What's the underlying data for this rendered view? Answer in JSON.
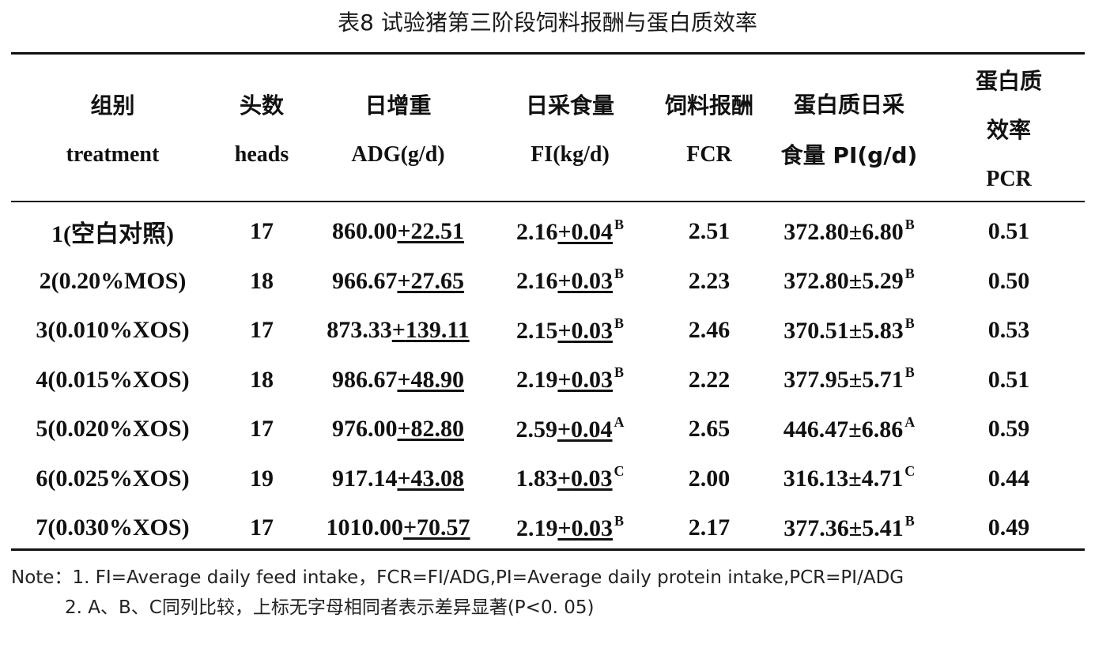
{
  "title": "表8 试验猪第三阶段饲料报酬与蛋白质效率",
  "table": {
    "columns": [
      {
        "zh": "组别",
        "en": "treatment"
      },
      {
        "zh": "头数",
        "en": "heads"
      },
      {
        "zh": "日增重",
        "en": "ADG(g/d)"
      },
      {
        "zh": "日采食量",
        "en": "FI(kg/d)"
      },
      {
        "zh": "饲料报酬",
        "en": "FCR"
      },
      {
        "zh": "蛋白质日采",
        "zh2": "食量 PI(g/d)"
      },
      {
        "zh": "蛋白质",
        "zh2": "效率",
        "en": "PCR"
      }
    ],
    "rows": [
      {
        "treatment": "1(空白对照)",
        "heads": "17",
        "adg_mean": "860.00",
        "adg_sd": "22.51",
        "fi_mean": "2.16",
        "fi_sd": "0.04",
        "fi_sig": "B",
        "fcr": "2.51",
        "pi": "372.80±6.80",
        "pi_sig": "B",
        "pcr": "0.51"
      },
      {
        "treatment": "2(0.20%MOS)",
        "heads": "18",
        "adg_mean": "966.67",
        "adg_sd": "27.65",
        "fi_mean": "2.16",
        "fi_sd": "0.03",
        "fi_sig": "B",
        "fcr": "2.23",
        "pi": "372.80±5.29",
        "pi_sig": "B",
        "pcr": "0.50"
      },
      {
        "treatment": "3(0.010%XOS)",
        "heads": "17",
        "adg_mean": "873.33",
        "adg_sd": "139.11",
        "fi_mean": "2.15",
        "fi_sd": "0.03",
        "fi_sig": "B",
        "fcr": "2.46",
        "pi": "370.51±5.83",
        "pi_sig": "B",
        "pcr": "0.53"
      },
      {
        "treatment": "4(0.015%XOS)",
        "heads": "18",
        "adg_mean": "986.67",
        "adg_sd": "48.90",
        "fi_mean": "2.19",
        "fi_sd": "0.03",
        "fi_sig": "B",
        "fcr": "2.22",
        "pi": "377.95±5.71",
        "pi_sig": "B",
        "pcr": "0.51"
      },
      {
        "treatment": "5(0.020%XOS)",
        "heads": "17",
        "adg_mean": "976.00",
        "adg_sd": "82.80",
        "fi_mean": "2.59",
        "fi_sd": "0.04",
        "fi_sig": "A",
        "fcr": "2.65",
        "pi": "446.47±6.86",
        "pi_sig": "A",
        "pcr": "0.59"
      },
      {
        "treatment": "6(0.025%XOS)",
        "heads": "19",
        "adg_mean": "917.14",
        "adg_sd": "43.08",
        "fi_mean": "1.83",
        "fi_sd": "0.03",
        "fi_sig": "C",
        "fcr": "2.00",
        "pi": "316.13±4.71",
        "pi_sig": "C",
        "pcr": "0.44"
      },
      {
        "treatment": "7(0.030%XOS)",
        "heads": "17",
        "adg_mean": "1010.00",
        "adg_sd": "70.57",
        "fi_mean": "2.19",
        "fi_sd": "0.03",
        "fi_sig": "B",
        "fcr": "2.17",
        "pi": "377.36±5.41",
        "pi_sig": "B",
        "pcr": "0.49"
      }
    ]
  },
  "notes": {
    "line1": "Note：1. FI=Average daily feed intake，FCR=FI/ADG,PI=Average daily protein intake,PCR=PI/ADG",
    "line2": "2. A、B、C同列比较，上标无字母相同者表示差异显著(P<0. 05)"
  }
}
